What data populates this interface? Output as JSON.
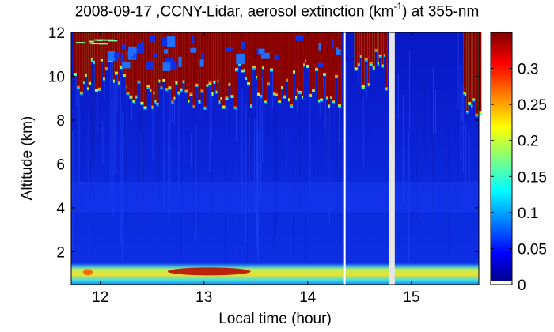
{
  "chart_data": {
    "type": "heatmap",
    "title_parts": {
      "before": "2008-09-17 ,CCNY-Lidar, aerosol extinction (km",
      "sup": "-1",
      "after": ") at 355-nm"
    },
    "xlabel": "Local time (hour)",
    "ylabel": "Altitude (km)",
    "xlim": [
      11.72,
      15.65
    ],
    "ylim": [
      0.5,
      12
    ],
    "x_ticks": [
      12,
      13,
      14,
      15
    ],
    "x_tick_labels": [
      "12",
      "13",
      "14",
      "15"
    ],
    "y_ticks": [
      2,
      4,
      6,
      8,
      10,
      12
    ],
    "y_tick_labels": [
      "2",
      "4",
      "6",
      "8",
      "10",
      "12"
    ],
    "colorbar": {
      "colormap": "jet",
      "range": [
        0,
        0.35
      ],
      "ticks": [
        0,
        0.05,
        0.1,
        0.15,
        0.2,
        0.25,
        0.3
      ],
      "tick_labels": [
        "0",
        "0.05",
        "0.1",
        "0.15",
        "0.2",
        "0.25",
        "0.3"
      ]
    },
    "no_data_gaps": [
      {
        "start": 14.35,
        "end": 14.36
      },
      {
        "start": 14.78,
        "end": 14.84
      }
    ],
    "features": {
      "boundary_layer": {
        "bottom": 0.5,
        "top": 1.5,
        "value": 0.22,
        "core_value": 0.33,
        "core_start": 12.65,
        "core_end": 13.45
      },
      "cloud_layer": {
        "bottom_min": 8.5,
        "top": 12,
        "value": 0.35,
        "segments": [
          [
            11.75,
            12.25
          ],
          [
            12.25,
            13.3
          ],
          [
            13.3,
            14.3
          ],
          [
            14.45,
            14.75
          ],
          [
            15.5,
            15.65
          ]
        ]
      },
      "background_value": 0.02
    }
  }
}
